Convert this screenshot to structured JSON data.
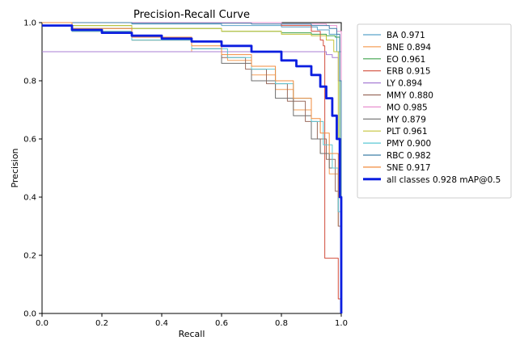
{
  "chart_data": {
    "type": "line",
    "title": "Precision-Recall Curve",
    "xlabel": "Recall",
    "ylabel": "Precision",
    "xlim": [
      0,
      1
    ],
    "ylim": [
      0,
      1
    ],
    "xticks": [
      "0.0",
      "0.2",
      "0.4",
      "0.6",
      "0.8",
      "1.0"
    ],
    "yticks": [
      "0.0",
      "0.2",
      "0.4",
      "0.6",
      "0.8",
      "1.0"
    ],
    "legend_position": "outside-right",
    "series": [
      {
        "name": "BA 0.971",
        "color": "#5ba3c9",
        "width": 1,
        "x": [
          0,
          0.05,
          0.3,
          0.6,
          0.8,
          0.92,
          0.96,
          0.985,
          1.0
        ],
        "y": [
          1,
          1,
          0.995,
          0.99,
          0.985,
          0.975,
          0.96,
          0.9,
          0
        ]
      },
      {
        "name": "BNE 0.894",
        "color": "#f5a05a",
        "width": 1,
        "x": [
          0,
          0.1,
          0.3,
          0.5,
          0.62,
          0.7,
          0.78,
          0.84,
          0.9,
          0.93,
          0.96,
          0.99,
          1.0
        ],
        "y": [
          1,
          0.97,
          0.94,
          0.9,
          0.87,
          0.82,
          0.77,
          0.7,
          0.6,
          0.55,
          0.48,
          0.3,
          0
        ]
      },
      {
        "name": "EO 0.961",
        "color": "#3fa34d",
        "width": 1,
        "x": [
          0,
          0.1,
          0.3,
          0.6,
          0.8,
          0.9,
          0.95,
          0.98,
          0.995,
          1.0
        ],
        "y": [
          1,
          0.99,
          0.98,
          0.97,
          0.965,
          0.96,
          0.955,
          0.95,
          0.6,
          0
        ]
      },
      {
        "name": "ERB 0.915",
        "color": "#d24d3c",
        "width": 1,
        "x": [
          0,
          0.1,
          0.5,
          0.8,
          0.9,
          0.93,
          0.94,
          0.945,
          0.945,
          0.99,
          1.0
        ],
        "y": [
          1,
          1,
          1,
          0.99,
          0.97,
          0.94,
          0.92,
          0.9,
          0.19,
          0.05,
          0
        ]
      },
      {
        "name": "LY 0.894",
        "color": "#a87fd4",
        "width": 1,
        "x": [
          0,
          0.1,
          0.3,
          0.6,
          0.8,
          0.9,
          0.95,
          0.97,
          0.99,
          1.0
        ],
        "y": [
          0.9,
          0.9,
          0.9,
          0.9,
          0.9,
          0.9,
          0.89,
          0.88,
          0.8,
          0
        ]
      },
      {
        "name": "MMY 0.880",
        "color": "#9a6b5e",
        "width": 1,
        "x": [
          0,
          0.1,
          0.3,
          0.5,
          0.6,
          0.68,
          0.75,
          0.82,
          0.88,
          0.92,
          0.95,
          0.98,
          0.99,
          1.0
        ],
        "y": [
          1,
          0.97,
          0.94,
          0.91,
          0.88,
          0.84,
          0.79,
          0.73,
          0.66,
          0.6,
          0.53,
          0.42,
          0.3,
          0
        ]
      },
      {
        "name": "MO 0.985",
        "color": "#e88fcf",
        "width": 1,
        "x": [
          0,
          0.2,
          0.5,
          0.8,
          0.95,
          0.985,
          1.0
        ],
        "y": [
          1,
          1,
          1,
          0.995,
          0.99,
          0.97,
          0
        ]
      },
      {
        "name": "MY 0.879",
        "color": "#6e6e6e",
        "width": 1,
        "x": [
          0,
          0.1,
          0.3,
          0.5,
          0.6,
          0.7,
          0.78,
          0.84,
          0.9,
          0.93,
          0.96,
          0.99,
          1.0
        ],
        "y": [
          1,
          0.98,
          0.95,
          0.91,
          0.86,
          0.8,
          0.74,
          0.68,
          0.6,
          0.55,
          0.5,
          0.35,
          0
        ]
      },
      {
        "name": "PLT 0.961",
        "color": "#c5c43a",
        "width": 1,
        "x": [
          0,
          0.1,
          0.3,
          0.6,
          0.8,
          0.9,
          0.95,
          0.975,
          0.99,
          1.0
        ],
        "y": [
          1,
          0.99,
          0.98,
          0.97,
          0.96,
          0.955,
          0.94,
          0.9,
          0.6,
          0
        ]
      },
      {
        "name": "PMY 0.900",
        "color": "#5bc8d6",
        "width": 1,
        "x": [
          0,
          0.1,
          0.3,
          0.5,
          0.62,
          0.7,
          0.78,
          0.84,
          0.9,
          0.94,
          0.97,
          0.99,
          1.0
        ],
        "y": [
          1,
          0.97,
          0.94,
          0.91,
          0.88,
          0.84,
          0.79,
          0.74,
          0.66,
          0.58,
          0.5,
          0.35,
          0
        ]
      },
      {
        "name": "RBC 0.982",
        "color": "#3f7fa8",
        "width": 1,
        "x": [
          0,
          0.3,
          0.7,
          0.9,
          0.96,
          0.985,
          0.995,
          1.0
        ],
        "y": [
          1,
          0.998,
          0.995,
          0.99,
          0.98,
          0.96,
          0.8,
          0
        ]
      },
      {
        "name": "SNE 0.917",
        "color": "#f28b3c",
        "width": 1,
        "x": [
          0,
          0.1,
          0.3,
          0.5,
          0.6,
          0.7,
          0.78,
          0.84,
          0.9,
          0.93,
          0.96,
          0.99,
          1.0
        ],
        "y": [
          1,
          0.98,
          0.95,
          0.92,
          0.89,
          0.85,
          0.8,
          0.74,
          0.67,
          0.62,
          0.55,
          0.4,
          0
        ]
      },
      {
        "name": "all classes 0.928 mAP@0.5",
        "color": "#0b1ee0",
        "width": 2.8,
        "x": [
          0,
          0.1,
          0.2,
          0.3,
          0.4,
          0.5,
          0.6,
          0.7,
          0.8,
          0.85,
          0.9,
          0.93,
          0.95,
          0.97,
          0.985,
          0.995,
          1.0
        ],
        "y": [
          0.99,
          0.975,
          0.965,
          0.955,
          0.945,
          0.935,
          0.92,
          0.9,
          0.87,
          0.85,
          0.82,
          0.78,
          0.74,
          0.68,
          0.6,
          0.4,
          0
        ]
      }
    ]
  }
}
